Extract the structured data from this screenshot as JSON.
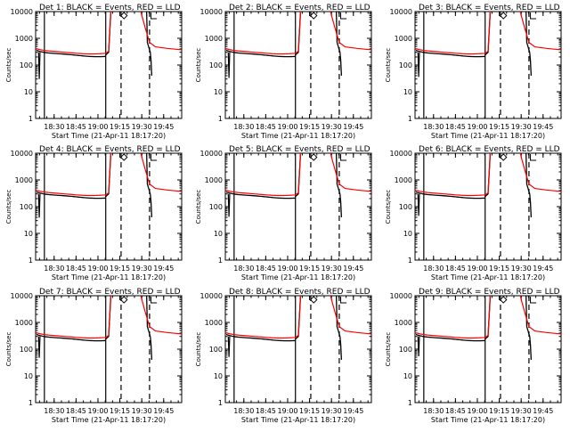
{
  "figure": {
    "ylabel": "Counts/sec",
    "xlabel": "Start Time (21-Apr-11 18:17:20)"
  },
  "chart_data": [
    {
      "type": "line",
      "title": "Det 1: BLACK = Events, RED = LLD",
      "xticks": [
        "18:30",
        "18:45",
        "19:00",
        "19:15",
        "19:30",
        "19:45"
      ],
      "yscale": "log",
      "ylim": [
        1,
        10000
      ],
      "yticks": [
        "1",
        "10",
        "100",
        "1000",
        "10000"
      ]
    },
    {
      "type": "line",
      "title": "Det 2: BLACK = Events, RED = LLD",
      "xticks": [
        "18:30",
        "18:45",
        "19:00",
        "19:15",
        "19:30",
        "19:45"
      ],
      "yscale": "log",
      "ylim": [
        1,
        10000
      ],
      "yticks": [
        "1",
        "10",
        "100",
        "1000",
        "10000"
      ]
    },
    {
      "type": "line",
      "title": "Det 3: BLACK = Events, RED = LLD",
      "xticks": [
        "18:30",
        "18:45",
        "19:00",
        "19:15",
        "19:30",
        "19:45"
      ],
      "yscale": "log",
      "ylim": [
        1,
        10000
      ],
      "yticks": [
        "1",
        "10",
        "100",
        "1000",
        "10000"
      ]
    },
    {
      "type": "line",
      "title": "Det 4: BLACK = Events, RED = LLD",
      "xticks": [
        "18:30",
        "18:45",
        "19:00",
        "19:15",
        "19:30",
        "19:45"
      ],
      "yscale": "log",
      "ylim": [
        1,
        10000
      ],
      "yticks": [
        "1",
        "10",
        "100",
        "1000",
        "10000"
      ]
    },
    {
      "type": "line",
      "title": "Det 5: BLACK = Events, RED = LLD",
      "xticks": [
        "18:30",
        "18:45",
        "19:00",
        "19:15",
        "19:30",
        "19:45"
      ],
      "yscale": "log",
      "ylim": [
        1,
        10000
      ],
      "yticks": [
        "1",
        "10",
        "100",
        "1000",
        "10000"
      ]
    },
    {
      "type": "line",
      "title": "Det 6: BLACK = Events, RED = LLD",
      "xticks": [
        "18:30",
        "18:45",
        "19:00",
        "19:15",
        "19:30",
        "19:45"
      ],
      "yscale": "log",
      "ylim": [
        1,
        10000
      ],
      "yticks": [
        "1",
        "10",
        "100",
        "1000",
        "10000"
      ]
    },
    {
      "type": "line",
      "title": "Det 7: BLACK = Events, RED = LLD",
      "xticks": [
        "18:30",
        "18:45",
        "19:00",
        "19:15",
        "19:30",
        "19:45"
      ],
      "yscale": "log",
      "ylim": [
        1,
        10000
      ],
      "yticks": [
        "1",
        "10",
        "100",
        "1000",
        "10000"
      ]
    },
    {
      "type": "line",
      "title": "Det 8: BLACK = Events, RED = LLD",
      "xticks": [
        "18:30",
        "18:45",
        "19:00",
        "19:15",
        "19:30",
        "19:45"
      ],
      "yscale": "log",
      "ylim": [
        1,
        10000
      ],
      "yticks": [
        "1",
        "10",
        "100",
        "1000",
        "10000"
      ]
    },
    {
      "type": "line",
      "title": "Det 9: BLACK = Events, RED = LLD",
      "xticks": [
        "18:30",
        "18:45",
        "19:00",
        "19:15",
        "19:30",
        "19:45"
      ],
      "yscale": "log",
      "ylim": [
        1,
        10000
      ],
      "yticks": [
        "1",
        "10",
        "100",
        "1000",
        "10000"
      ]
    }
  ],
  "series_colors": {
    "events": "#000000",
    "lld": "#ff0000"
  }
}
